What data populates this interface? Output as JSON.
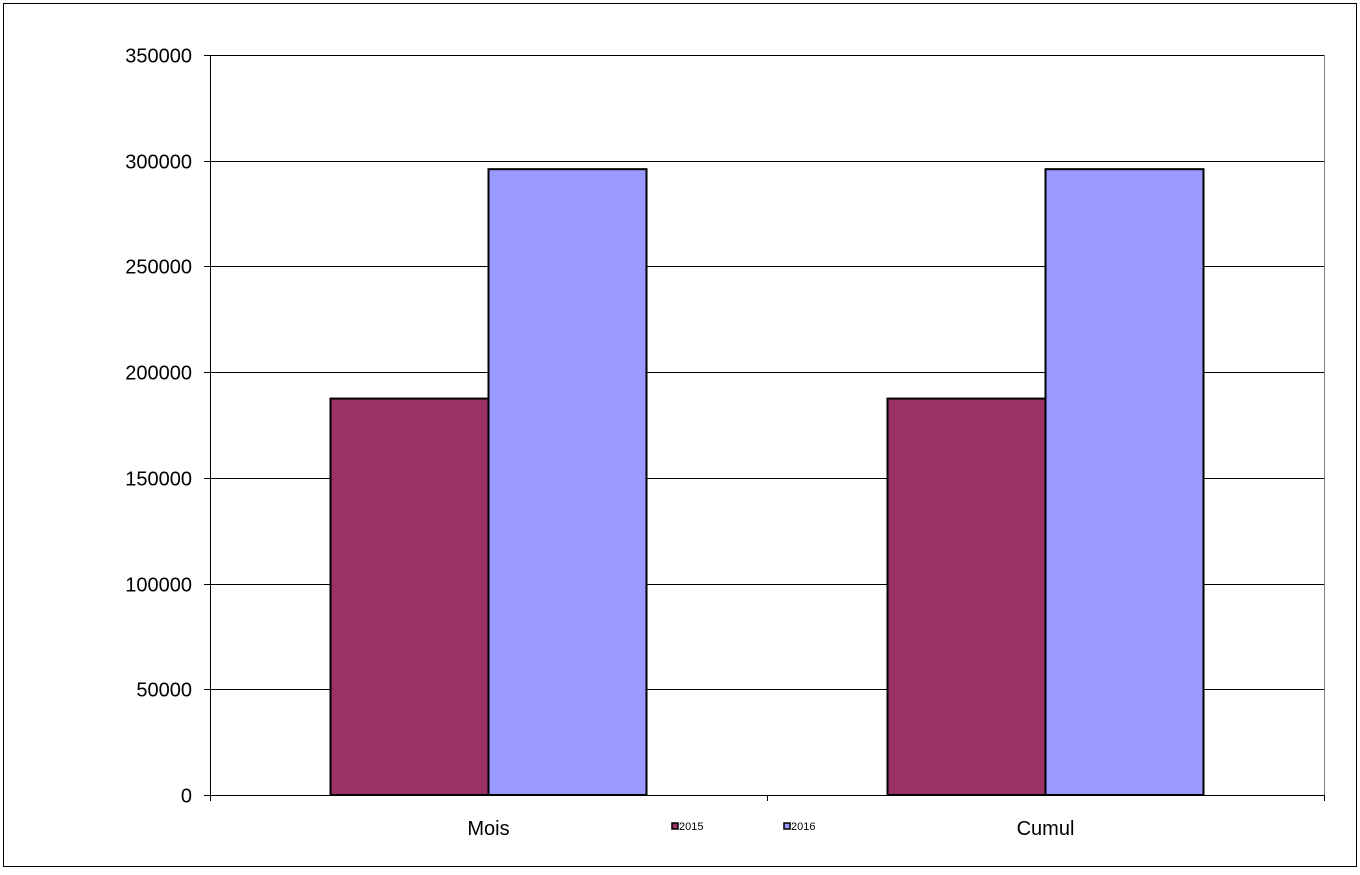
{
  "chart_data": {
    "type": "bar",
    "title": "",
    "xlabel": "",
    "ylabel": "",
    "categories": [
      "Mois",
      "Cumul"
    ],
    "series": [
      {
        "name": "2015",
        "values": [
          187500,
          187500
        ],
        "color": "#993366"
      },
      {
        "name": "2016",
        "values": [
          296000,
          296000
        ],
        "color": "#9999FF"
      }
    ],
    "ylim": [
      0,
      350000
    ],
    "yticks": [
      0,
      50000,
      100000,
      150000,
      200000,
      250000,
      300000,
      350000
    ],
    "ytick_labels": [
      "0",
      "50000",
      "100000",
      "150000",
      "200000",
      "250000",
      "300000",
      "350000"
    ],
    "grid": true,
    "legend_position": "bottom-center"
  }
}
